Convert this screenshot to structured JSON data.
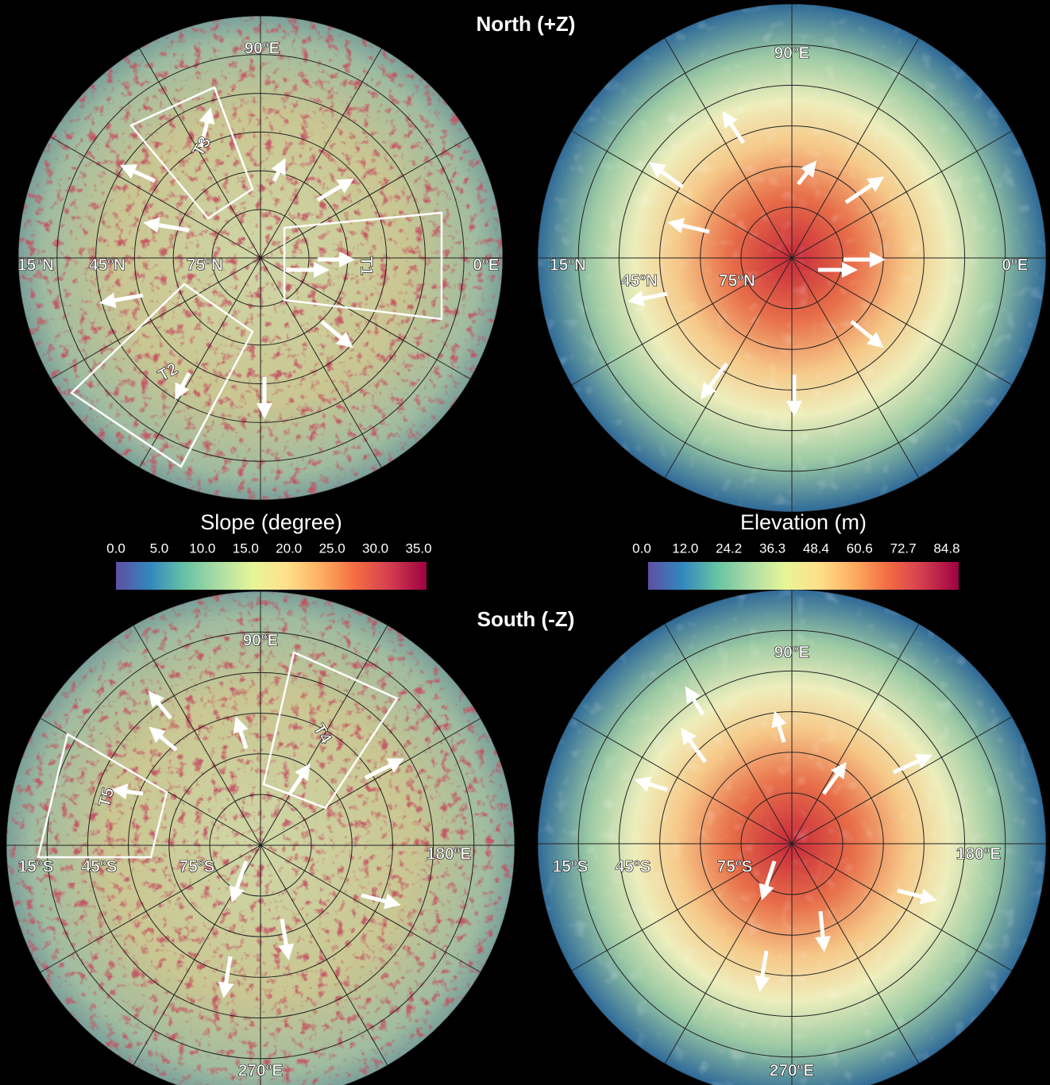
{
  "headers": {
    "north": "North (+Z)",
    "south": "South (-Z)"
  },
  "panels": [
    {
      "labels": [
        "90ºE",
        "15ºN",
        "45ºN",
        "75ºN",
        "0ºE"
      ],
      "regions": [
        "T1",
        "T2",
        "T3"
      ]
    },
    {
      "labels": [
        "90ºE",
        "15ºN",
        "45ºN",
        "75ºN",
        "0ºE"
      ],
      "regions": []
    },
    {
      "labels": [
        "90ºE",
        "15ºS",
        "45ºS",
        "75ºS",
        "180ºE",
        "270ºE"
      ],
      "regions": [
        "T4",
        "T5"
      ]
    },
    {
      "labels": [
        "90ºE",
        "15ºS",
        "45ºS",
        "75ºS",
        "180ºE",
        "270ºE"
      ],
      "regions": []
    }
  ],
  "colorbars": [
    {
      "title": "Slope (degree)",
      "ticks": [
        "0.0",
        "5.0",
        "10.0",
        "15.0",
        "20.0",
        "25.0",
        "30.0",
        "35.0"
      ]
    },
    {
      "title": "Elevation (m)",
      "ticks": [
        "0.0",
        "12.0",
        "24.2",
        "36.3",
        "48.4",
        "60.6",
        "72.7",
        "84.8"
      ]
    }
  ]
}
